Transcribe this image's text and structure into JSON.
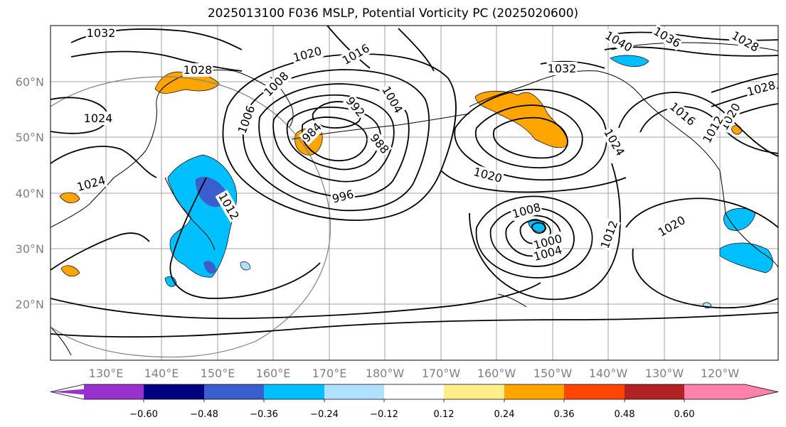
{
  "title": "2025013100 F036 MSLP, Potential Vorticity PC (2025020600)",
  "map": {
    "lat_labels": [
      "60°N",
      "50°N",
      "40°N",
      "30°N",
      "20°N"
    ],
    "lon_labels": [
      "130°E",
      "140°E",
      "150°E",
      "160°E",
      "170°E",
      "180°W",
      "170°W",
      "160°W",
      "150°W",
      "140°W",
      "130°W",
      "120°W"
    ],
    "contour_labels": [
      "1032",
      "1028",
      "1024",
      "1020",
      "1016",
      "1008",
      "1006",
      "984",
      "992",
      "1004",
      "988",
      "996",
      "1012",
      "1020",
      "1008",
      "1000",
      "1004",
      "1012",
      "1024",
      "1020",
      "1040",
      "1036",
      "1032",
      "1028",
      "1028",
      "1016",
      "1020",
      "1012",
      "1024"
    ],
    "pv_colors": {
      "positive": "#ffa500",
      "negative": "#00bfff",
      "strong_negative": "#3b5bcc"
    }
  },
  "colorbar": {
    "colors": [
      "#9932cc",
      "#000080",
      "#3a5fcd",
      "#00bfff",
      "#b0e2ff",
      "#ffffff",
      "#ffec8b",
      "#ffa500",
      "#ff4500",
      "#b22222",
      "#ff82ab"
    ],
    "ticks": [
      "−0.60",
      "−0.48",
      "−0.36",
      "−0.24",
      "−0.12",
      "0.12",
      "0.24",
      "0.36",
      "0.48",
      "0.60"
    ]
  }
}
